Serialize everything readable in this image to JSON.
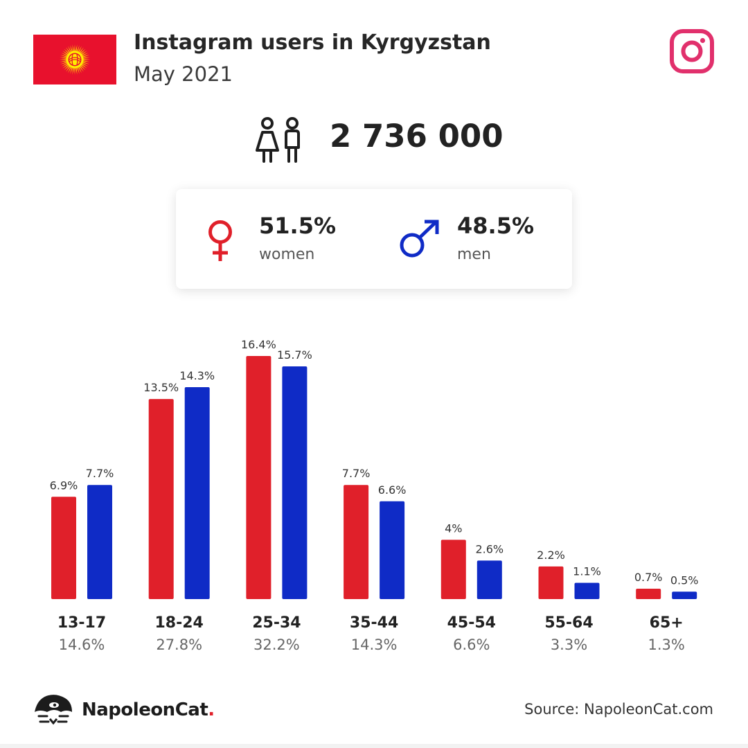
{
  "header": {
    "title": "Instagram users in Kyrgyzstan",
    "subtitle": "May 2021"
  },
  "summary": {
    "total_users": "2 736 000",
    "women": {
      "percent": "51.5%",
      "label": "women"
    },
    "men": {
      "percent": "48.5%",
      "label": "men"
    }
  },
  "icons": {
    "flag": "kyrgyzstan-flag-icon",
    "instagram": "instagram-icon",
    "people": "people-icon",
    "female": "female-symbol-icon",
    "male": "male-symbol-icon",
    "brand_logo": "napoleoncat-logo-icon"
  },
  "colors": {
    "women": "#e0202a",
    "men": "#0f2bc6",
    "flag_red": "#e8112d",
    "flag_sun": "#ffef00",
    "instagram": "#e1306c"
  },
  "chart_data": {
    "type": "bar",
    "categories": [
      "13-17",
      "18-24",
      "25-34",
      "35-44",
      "45-54",
      "55-64",
      "65+"
    ],
    "category_totals": [
      "14.6%",
      "27.8%",
      "32.2%",
      "14.3%",
      "6.6%",
      "3.3%",
      "1.3%"
    ],
    "series": [
      {
        "key": "women",
        "values": [
          6.9,
          13.5,
          16.4,
          7.7,
          4,
          2.2,
          0.7
        ],
        "labels": [
          "6.9%",
          "13.5%",
          "16.4%",
          "7.7%",
          "4%",
          "2.2%",
          "0.7%"
        ]
      },
      {
        "key": "men",
        "values": [
          7.7,
          14.3,
          15.7,
          6.6,
          2.6,
          1.1,
          0.5
        ],
        "labels": [
          "7.7%",
          "14.3%",
          "15.7%",
          "6.6%",
          "2.6%",
          "1.1%",
          "0.5%"
        ]
      }
    ],
    "title": "",
    "xlabel": "",
    "ylabel": "",
    "grid": false
  },
  "footer": {
    "brand_name": "NapoleonCat",
    "brand_dot": ".",
    "source": "Source: NapoleonCat.com"
  }
}
